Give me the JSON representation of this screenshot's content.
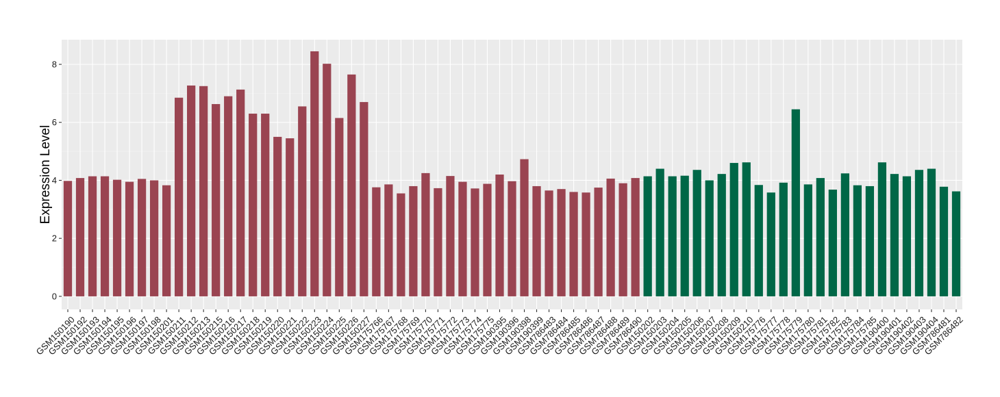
{
  "chart_data": {
    "type": "bar",
    "title": "",
    "xlabel": "",
    "ylabel": "Expression Level",
    "ylim": [
      -0.45,
      8.85
    ],
    "yticks": [
      0,
      2,
      4,
      6,
      8
    ],
    "grid": true,
    "background": "#EBEBEB",
    "colors": {
      "group1": "#9A4451",
      "group2": "#006747"
    },
    "categories": [
      "GSM150190",
      "GSM150192",
      "GSM150193",
      "GSM150194",
      "GSM150195",
      "GSM150196",
      "GSM150197",
      "GSM150198",
      "GSM150201",
      "GSM150211",
      "GSM150212",
      "GSM150213",
      "GSM150215",
      "GSM150216",
      "GSM150217",
      "GSM150218",
      "GSM150219",
      "GSM150220",
      "GSM150221",
      "GSM150222",
      "GSM150223",
      "GSM150224",
      "GSM150225",
      "GSM150226",
      "GSM150227",
      "GSM175766",
      "GSM175767",
      "GSM175768",
      "GSM175769",
      "GSM175770",
      "GSM175771",
      "GSM175772",
      "GSM175773",
      "GSM175774",
      "GSM175775",
      "GSM190395",
      "GSM190396",
      "GSM190398",
      "GSM190399",
      "GSM786483",
      "GSM786484",
      "GSM786485",
      "GSM786486",
      "GSM786487",
      "GSM786488",
      "GSM786489",
      "GSM786490",
      "GSM150202",
      "GSM150203",
      "GSM150204",
      "GSM150205",
      "GSM150206",
      "GSM150207",
      "GSM150208",
      "GSM150209",
      "GSM150210",
      "GSM175776",
      "GSM175777",
      "GSM175778",
      "GSM175779",
      "GSM175780",
      "GSM175781",
      "GSM175782",
      "GSM175783",
      "GSM175784",
      "GSM175785",
      "GSM190400",
      "GSM190401",
      "GSM190402",
      "GSM190403",
      "GSM190404",
      "GSM786481",
      "GSM786482"
    ],
    "values": [
      3.98,
      4.08,
      4.14,
      4.14,
      4.02,
      3.95,
      4.05,
      4.0,
      3.83,
      6.85,
      7.27,
      7.25,
      6.63,
      6.9,
      7.13,
      6.3,
      6.3,
      5.5,
      5.45,
      6.55,
      8.45,
      8.02,
      6.15,
      7.65,
      6.7,
      3.76,
      3.86,
      3.55,
      3.8,
      4.25,
      3.73,
      4.15,
      3.95,
      3.72,
      3.88,
      4.2,
      3.97,
      4.73,
      3.8,
      3.65,
      3.7,
      3.6,
      3.58,
      3.75,
      4.06,
      3.9,
      4.08,
      4.14,
      4.4,
      4.14,
      4.16,
      4.36,
      4.0,
      4.22,
      4.6,
      4.62,
      3.84,
      3.58,
      3.92,
      6.45,
      3.86,
      4.08,
      3.68,
      4.24,
      3.83,
      3.8,
      4.62,
      4.22,
      4.14,
      4.36,
      4.4,
      3.78,
      3.62
    ],
    "groups": [
      "group1",
      "group1",
      "group1",
      "group1",
      "group1",
      "group1",
      "group1",
      "group1",
      "group1",
      "group1",
      "group1",
      "group1",
      "group1",
      "group1",
      "group1",
      "group1",
      "group1",
      "group1",
      "group1",
      "group1",
      "group1",
      "group1",
      "group1",
      "group1",
      "group1",
      "group1",
      "group1",
      "group1",
      "group1",
      "group1",
      "group1",
      "group1",
      "group1",
      "group1",
      "group1",
      "group1",
      "group1",
      "group1",
      "group1",
      "group1",
      "group1",
      "group1",
      "group1",
      "group1",
      "group1",
      "group1",
      "group1",
      "group2",
      "group2",
      "group2",
      "group2",
      "group2",
      "group2",
      "group2",
      "group2",
      "group2",
      "group2",
      "group2",
      "group2",
      "group2",
      "group2",
      "group2",
      "group2",
      "group2",
      "group2",
      "group2",
      "group2",
      "group2",
      "group2",
      "group2",
      "group2",
      "group2",
      "group2"
    ]
  }
}
